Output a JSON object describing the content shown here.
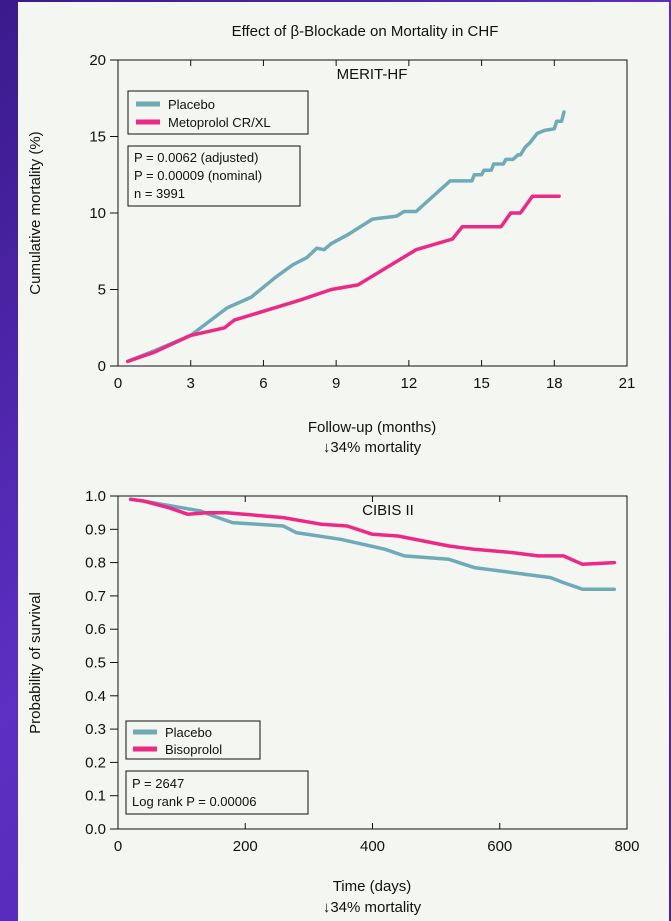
{
  "figure_title": "Effect of β-Blockade on Mortality in CHF",
  "colors": {
    "placebo": "#6eaab8",
    "treatment": "#ec2a86",
    "axis": "#111111",
    "background": "#f4f6f1"
  },
  "chart_data": [
    {
      "type": "line",
      "title": "MERIT-HF",
      "xlabel": "Follow-up (months)",
      "ylabel": "Cumulative mortality (%)",
      "caption": "↓34% mortality",
      "xlim": [
        0,
        21
      ],
      "ylim": [
        0,
        20
      ],
      "xticks": [
        0,
        3,
        6,
        9,
        12,
        15,
        18,
        21
      ],
      "yticks": [
        0,
        5,
        10,
        15,
        20
      ],
      "legend_position": "top-left",
      "stats_box": [
        "P = 0.0062 (adjusted)",
        "P = 0.00009 (nominal)",
        "n = 3991"
      ],
      "series": [
        {
          "name": "Placebo",
          "color": "#6eaab8",
          "points": [
            [
              0.4,
              0.3
            ],
            [
              1.5,
              1.0
            ],
            [
              3,
              2.0
            ],
            [
              4.5,
              3.8
            ],
            [
              5.5,
              4.5
            ],
            [
              6.5,
              5.8
            ],
            [
              7.2,
              6.6
            ],
            [
              7.8,
              7.1
            ],
            [
              8.2,
              7.7
            ],
            [
              8.5,
              7.6
            ],
            [
              8.8,
              8.0
            ],
            [
              9.5,
              8.6
            ],
            [
              10.5,
              9.6
            ],
            [
              11,
              9.7
            ],
            [
              11.5,
              9.8
            ],
            [
              11.8,
              10.1
            ],
            [
              12.3,
              10.1
            ],
            [
              13.7,
              12.1
            ],
            [
              14.6,
              12.1
            ],
            [
              14.7,
              12.5
            ],
            [
              15,
              12.5
            ],
            [
              15.1,
              12.8
            ],
            [
              15.4,
              12.8
            ],
            [
              15.5,
              13.2
            ],
            [
              15.9,
              13.2
            ],
            [
              16,
              13.5
            ],
            [
              16.3,
              13.5
            ],
            [
              16.5,
              13.8
            ],
            [
              16.6,
              13.8
            ],
            [
              16.8,
              14.3
            ],
            [
              17,
              14.6
            ],
            [
              17.3,
              15.2
            ],
            [
              17.6,
              15.4
            ],
            [
              18,
              15.5
            ],
            [
              18.1,
              16.0
            ],
            [
              18.3,
              16.0
            ],
            [
              18.4,
              16.6
            ]
          ]
        },
        {
          "name": "Metoprolol CR/XL",
          "color": "#ec2a86",
          "points": [
            [
              0.4,
              0.3
            ],
            [
              1.5,
              0.9
            ],
            [
              3,
              2.0
            ],
            [
              4.4,
              2.5
            ],
            [
              4.8,
              3.0
            ],
            [
              7.5,
              4.3
            ],
            [
              8.8,
              5.0
            ],
            [
              9.9,
              5.3
            ],
            [
              12.3,
              7.6
            ],
            [
              13.8,
              8.3
            ],
            [
              14.2,
              9.1
            ],
            [
              15.8,
              9.1
            ],
            [
              16.2,
              10.0
            ],
            [
              16.6,
              10.0
            ],
            [
              17.1,
              11.1
            ],
            [
              18.2,
              11.1
            ]
          ]
        }
      ]
    },
    {
      "type": "line",
      "title": "CIBIS II",
      "xlabel": "Time (days)",
      "ylabel": "Probability of survival",
      "caption": "↓34% mortality",
      "xlim": [
        0,
        800
      ],
      "ylim": [
        0,
        1.0
      ],
      "xticks": [
        0,
        200,
        400,
        600,
        800
      ],
      "yticks": [
        0.0,
        0.1,
        0.2,
        0.3,
        0.4,
        0.5,
        0.6,
        0.7,
        0.8,
        0.9,
        1.0
      ],
      "legend_position": "bottom-left",
      "stats_box": [
        "P = 2647",
        "Log rank P = 0.00006"
      ],
      "series": [
        {
          "name": "Placebo",
          "color": "#6eaab8",
          "points": [
            [
              20,
              0.99
            ],
            [
              40,
              0.985
            ],
            [
              70,
              0.975
            ],
            [
              100,
              0.965
            ],
            [
              130,
              0.955
            ],
            [
              150,
              0.94
            ],
            [
              180,
              0.92
            ],
            [
              260,
              0.91
            ],
            [
              280,
              0.89
            ],
            [
              350,
              0.87
            ],
            [
              420,
              0.84
            ],
            [
              450,
              0.82
            ],
            [
              520,
              0.81
            ],
            [
              560,
              0.785
            ],
            [
              620,
              0.77
            ],
            [
              680,
              0.755
            ],
            [
              700,
              0.74
            ],
            [
              730,
              0.72
            ],
            [
              780,
              0.72
            ]
          ]
        },
        {
          "name": "Bisoprolol",
          "color": "#ec2a86",
          "points": [
            [
              20,
              0.99
            ],
            [
              40,
              0.985
            ],
            [
              80,
              0.965
            ],
            [
              110,
              0.945
            ],
            [
              140,
              0.95
            ],
            [
              170,
              0.95
            ],
            [
              260,
              0.935
            ],
            [
              320,
              0.915
            ],
            [
              360,
              0.91
            ],
            [
              400,
              0.885
            ],
            [
              440,
              0.88
            ],
            [
              480,
              0.865
            ],
            [
              520,
              0.85
            ],
            [
              560,
              0.84
            ],
            [
              620,
              0.83
            ],
            [
              660,
              0.82
            ],
            [
              700,
              0.82
            ],
            [
              730,
              0.795
            ],
            [
              780,
              0.8
            ]
          ]
        }
      ]
    }
  ]
}
